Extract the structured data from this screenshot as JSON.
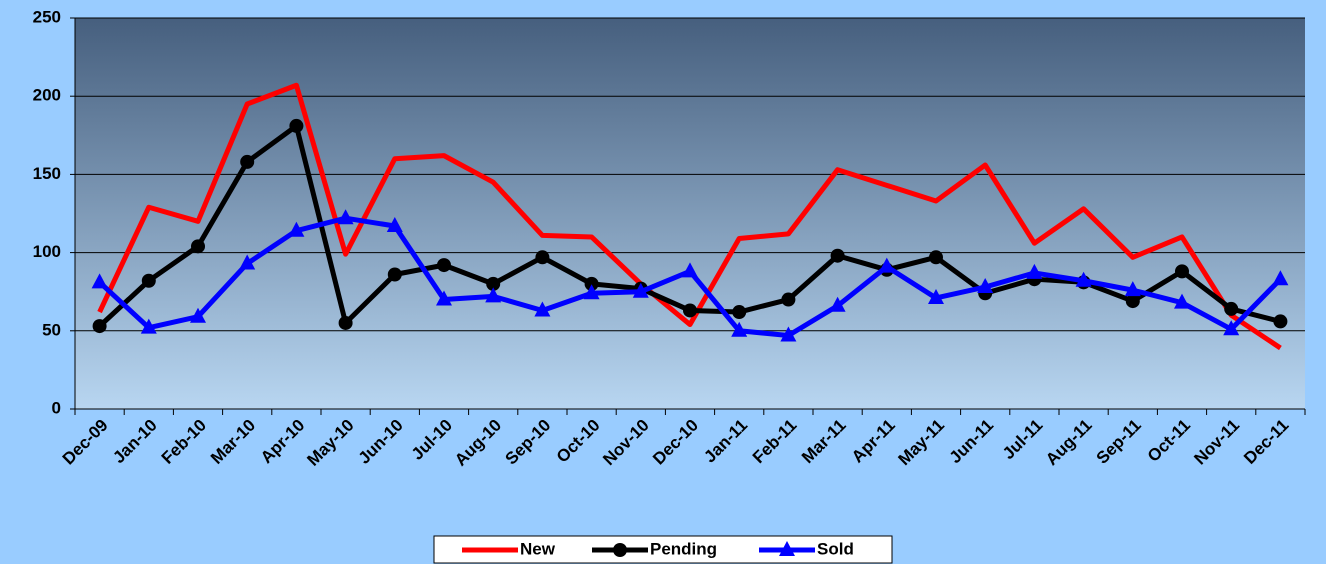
{
  "chart_data": {
    "type": "line",
    "categories": [
      "Dec-09",
      "Jan-10",
      "Feb-10",
      "Mar-10",
      "Apr-10",
      "May-10",
      "Jun-10",
      "Jul-10",
      "Aug-10",
      "Sep-10",
      "Oct-10",
      "Nov-10",
      "Dec-10",
      "Jan-11",
      "Feb-11",
      "Mar-11",
      "Apr-11",
      "May-11",
      "Jun-11",
      "Jul-11",
      "Aug-11",
      "Sep-11",
      "Oct-11",
      "Nov-11",
      "Dec-11"
    ],
    "series": [
      {
        "name": "New",
        "color": "#ff0000",
        "marker": "none",
        "values": [
          62,
          129,
          120,
          195,
          207,
          99,
          160,
          162,
          145,
          111,
          110,
          80,
          54,
          109,
          112,
          153,
          143,
          133,
          156,
          106,
          128,
          97,
          110,
          60,
          39
        ]
      },
      {
        "name": "Pending",
        "color": "#000000",
        "marker": "circle",
        "values": [
          53,
          82,
          104,
          158,
          181,
          55,
          86,
          92,
          80,
          97,
          80,
          77,
          63,
          62,
          70,
          98,
          89,
          97,
          74,
          83,
          81,
          69,
          88,
          64,
          56
        ]
      },
      {
        "name": "Sold",
        "color": "#0000ff",
        "marker": "triangle",
        "values": [
          81,
          52,
          59,
          93,
          114,
          122,
          117,
          70,
          72,
          63,
          74,
          75,
          88,
          50,
          47,
          66,
          91,
          71,
          78,
          87,
          82,
          76,
          68,
          51,
          83
        ]
      }
    ],
    "ylim": [
      0,
      250
    ],
    "yticks": [
      0,
      50,
      100,
      150,
      200,
      250
    ],
    "grid": true,
    "legend": "bottom"
  }
}
